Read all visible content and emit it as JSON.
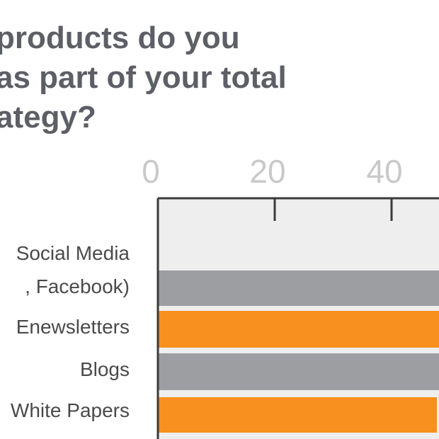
{
  "title_lines": [
    "products do you",
    "as part of your total",
    "ategy?"
  ],
  "chart_data": {
    "type": "bar",
    "orientation": "horizontal",
    "x_ticks": [
      0,
      20,
      40
    ],
    "categories": [
      [
        "Social Media",
        ", Facebook)"
      ],
      [
        "Enewsletters"
      ],
      [
        "Blogs"
      ],
      [
        "White Papers"
      ]
    ],
    "colors": {
      "plot_background": "#eeeeee",
      "gray_bar": "#9d9ea1",
      "orange_bar": "#f7901e",
      "axis": "#3a3a3a"
    }
  }
}
